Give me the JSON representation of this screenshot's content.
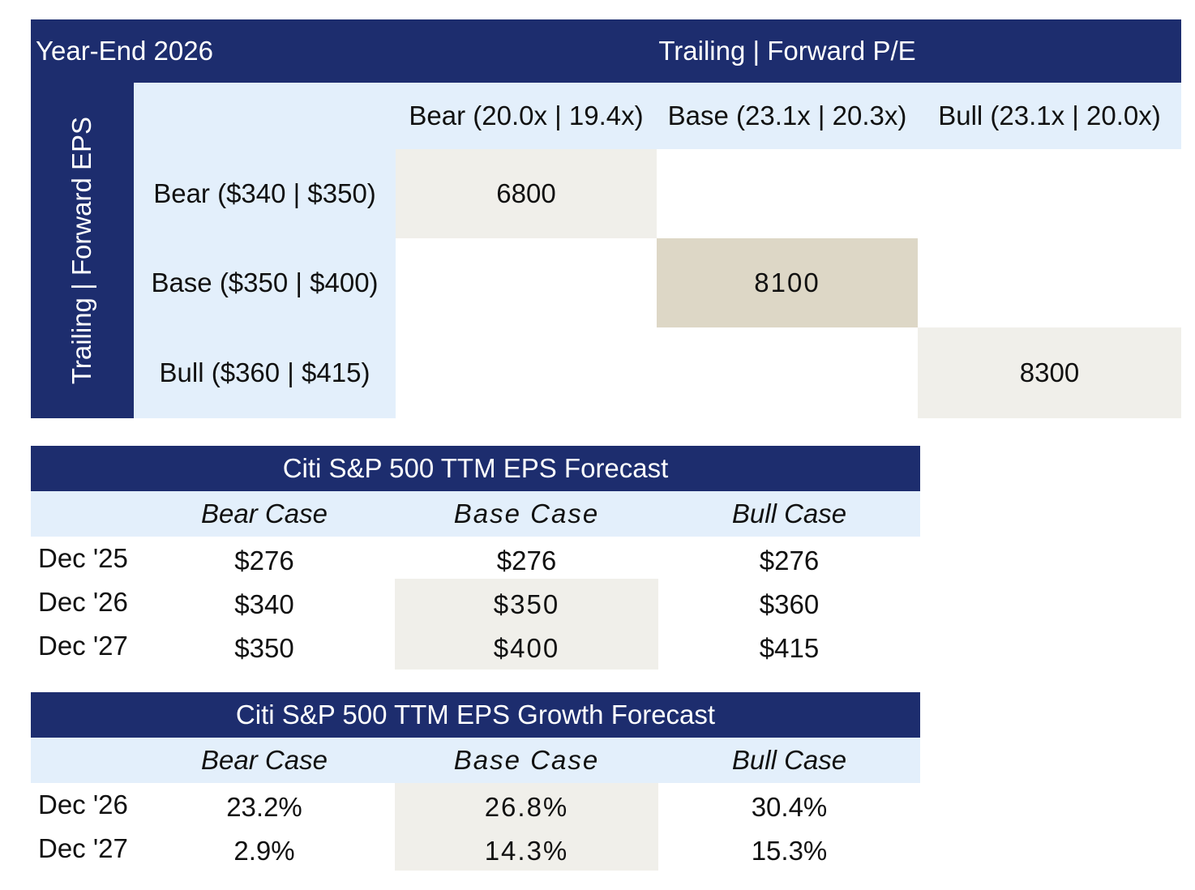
{
  "matrix": {
    "corner_title": "Year-End 2026",
    "column_group_title": "Trailing | Forward P/E",
    "row_group_title": "Trailing | Forward EPS",
    "columns": [
      "Bear (20.0x | 19.4x)",
      "Base (23.1x | 20.3x)",
      "Bull (23.1x | 20.0x)"
    ],
    "rows": [
      "Bear ($340 | $350)",
      "Base ($350 | $400)",
      "Bull ($360 | $415)"
    ],
    "values": {
      "bear": "6800",
      "base": "8100",
      "bull": "8300"
    }
  },
  "eps_forecast": {
    "title": "Citi S&P 500 TTM EPS Forecast",
    "headers": [
      "Bear Case",
      "Base Case",
      "Bull Case"
    ],
    "rows": [
      {
        "label": "Dec '25",
        "values": [
          "$276",
          "$276",
          "$276"
        ]
      },
      {
        "label": "Dec '26",
        "values": [
          "$340",
          "$350",
          "$360"
        ]
      },
      {
        "label": "Dec '27",
        "values": [
          "$350",
          "$400",
          "$415"
        ]
      }
    ]
  },
  "growth_forecast": {
    "title": "Citi S&P 500 TTM EPS Growth Forecast",
    "headers": [
      "Bear Case",
      "Base Case",
      "Bull Case"
    ],
    "rows": [
      {
        "label": "Dec '26",
        "values": [
          "23.2%",
          "26.8%",
          "30.4%"
        ]
      },
      {
        "label": "Dec '27",
        "values": [
          "2.9%",
          "14.3%",
          "15.3%"
        ]
      }
    ]
  },
  "colors": {
    "navy": "#1d2d6e",
    "light_blue": "#e3effb",
    "beige_light": "#f0efea",
    "beige_dark": "#ddd7c6"
  }
}
